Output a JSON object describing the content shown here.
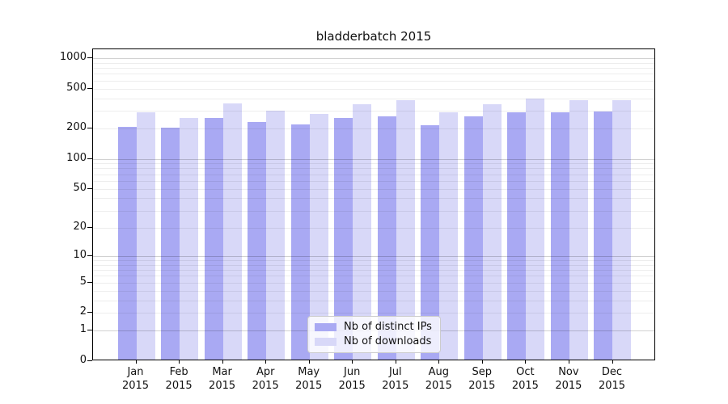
{
  "chart_data": {
    "type": "bar",
    "title": "bladderbatch 2015",
    "categories": [
      "Jan 2015",
      "Feb 2015",
      "Mar 2015",
      "Apr 2015",
      "May 2015",
      "Jun 2015",
      "Jul 2015",
      "Aug 2015",
      "Sep 2015",
      "Oct 2015",
      "Nov 2015",
      "Dec 2015"
    ],
    "series": [
      {
        "name": "Nb of distinct IPs",
        "color": "#a9a9f3",
        "values": [
          200,
          195,
          244,
          222,
          211,
          244,
          255,
          209,
          256,
          279,
          282,
          285
        ]
      },
      {
        "name": "Nb of downloads",
        "color": "#d8d8f8",
        "values": [
          280,
          247,
          342,
          288,
          270,
          336,
          370,
          280,
          338,
          382,
          370,
          371
        ]
      }
    ],
    "xlabel": "",
    "ylabel": "",
    "y_scale": "log10(1+x)",
    "ylim": [
      0,
      1225
    ],
    "y_tick_labels": [
      0,
      1,
      2,
      5,
      10,
      20,
      50,
      100,
      200,
      500,
      1000
    ],
    "y_major_gridlines": [
      1,
      10,
      100,
      1000
    ],
    "y_minor_gridlines": [
      2,
      3,
      4,
      5,
      6,
      7,
      8,
      9,
      20,
      30,
      40,
      50,
      60,
      70,
      80,
      90,
      200,
      300,
      400,
      500,
      600,
      700,
      800,
      900
    ],
    "grid": "on",
    "legend_position": "lower center",
    "colors": {
      "major_grid": "rgba(0,0,0,0.18)",
      "minor_grid": "rgba(0,0,0,0.07)",
      "axis": "#000000",
      "background": "#ffffff"
    }
  }
}
